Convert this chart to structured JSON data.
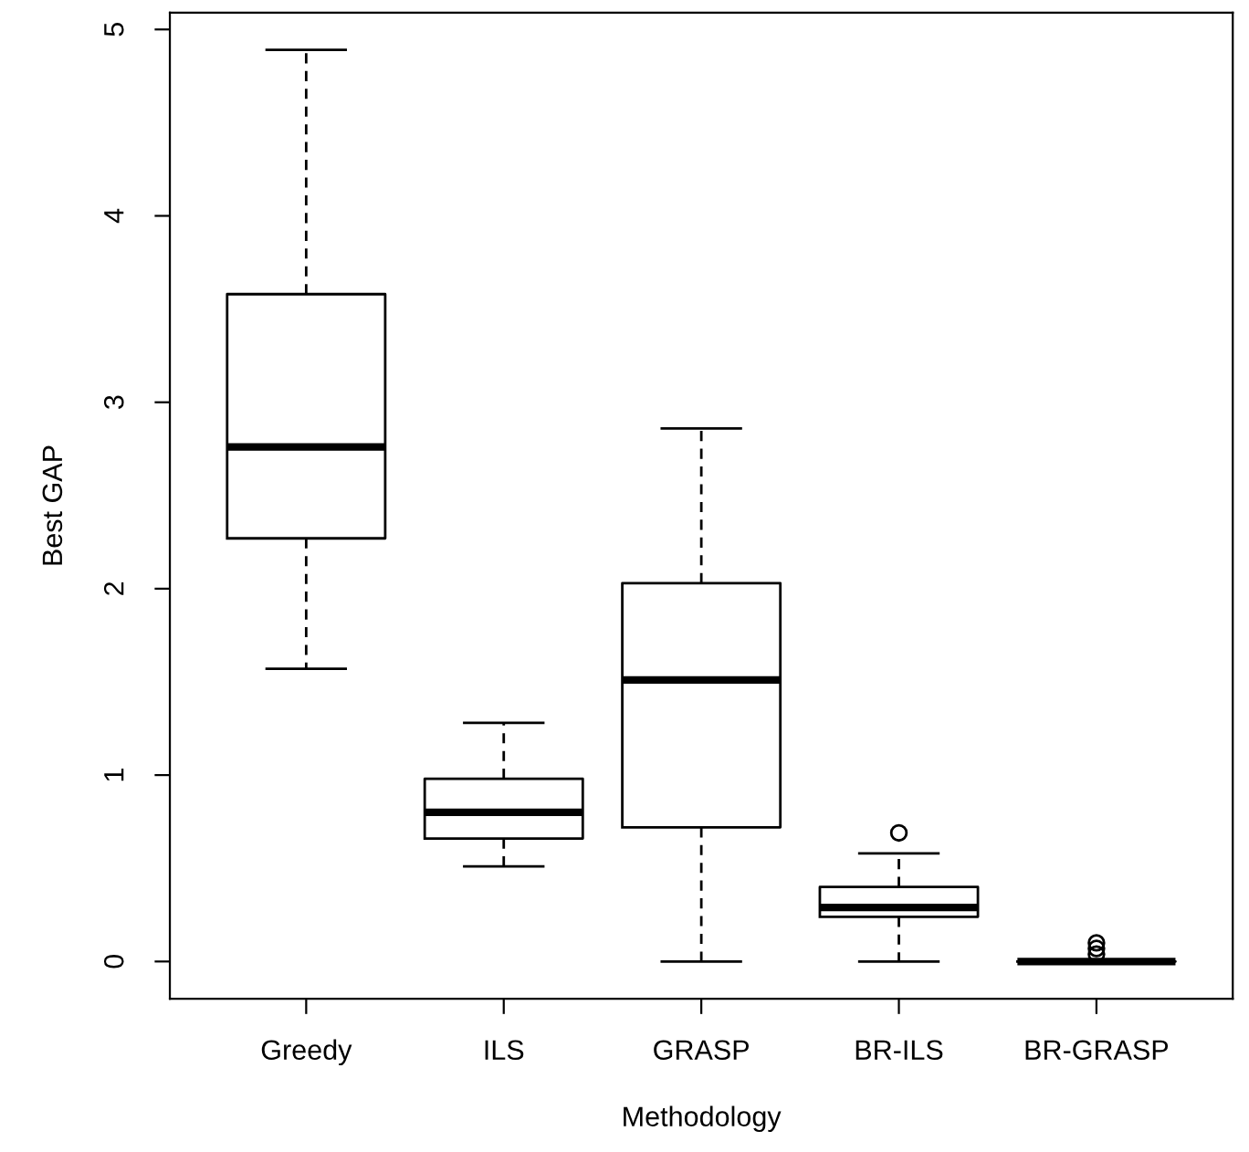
{
  "chart_data": {
    "type": "box",
    "xlabel": "Methodology",
    "ylabel": "Best GAP",
    "categories": [
      "Greedy",
      "ILS",
      "GRASP",
      "BR-ILS",
      "BR-GRASP"
    ],
    "boxes": [
      {
        "low": 1.57,
        "q1": 2.27,
        "median": 2.76,
        "q3": 3.58,
        "high": 4.89
      },
      {
        "low": 0.51,
        "q1": 0.66,
        "median": 0.8,
        "q3": 0.98,
        "high": 1.28
      },
      {
        "low": 0,
        "q1": 0.72,
        "median": 1.51,
        "q3": 2.03,
        "high": 2.86
      },
      {
        "low": 0,
        "q1": 0.24,
        "median": 0.29,
        "q3": 0.4,
        "high": 0.58,
        "outliers": [
          0.69
        ]
      },
      {
        "low": 0,
        "q1": 0,
        "median": 0,
        "q3": 0,
        "high": 0,
        "outliers": [
          0.04,
          0.07,
          0.1
        ]
      }
    ],
    "color": "#000000",
    "ylim": [
      -0.2,
      5.09
    ],
    "yticks": [
      0,
      1,
      2,
      3,
      4,
      5
    ],
    "line_style": "dashed",
    "grid": false
  }
}
